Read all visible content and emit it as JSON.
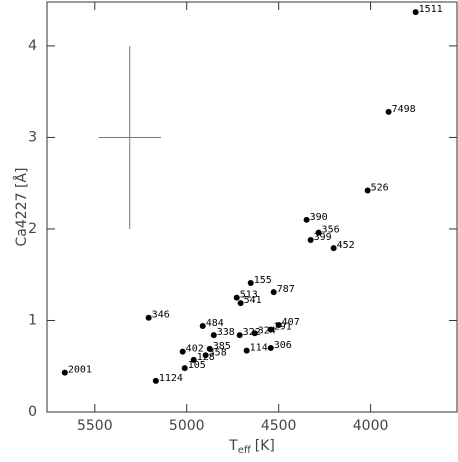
{
  "chart_data": {
    "type": "scatter",
    "xlabel": {
      "symbol": "T",
      "subscript": "eff",
      "unit": "[K]"
    },
    "ylabel": "Ca4227 [Å]",
    "color": "#000000",
    "xlim": [
      5760,
      3530
    ],
    "ylim": [
      0,
      4.48
    ],
    "xticks": [
      5500,
      5000,
      4500,
      4000
    ],
    "yticks": [
      0,
      1,
      2,
      3,
      4
    ],
    "names": [
      "1511",
      "7498",
      "526",
      "390",
      "356",
      "399",
      "452",
      "155",
      "787",
      "513",
      "541",
      "346",
      "484",
      "407",
      "291",
      "338",
      "322",
      "324",
      "306",
      "114",
      "402",
      "385",
      "358",
      "128",
      "105",
      "2001",
      "1124"
    ],
    "x": [
      3755,
      3902,
      4016,
      4348,
      4283,
      4326,
      4201,
      4652,
      4527,
      4728,
      4707,
      5207,
      4913,
      4500,
      4543,
      4853,
      4712,
      4630,
      4543,
      4674,
      5022,
      4875,
      4897,
      4962,
      5011,
      5663,
      5168
    ],
    "y": [
      4.37,
      3.28,
      2.42,
      2.1,
      1.96,
      1.88,
      1.79,
      1.41,
      1.31,
      1.25,
      1.19,
      1.03,
      0.94,
      0.95,
      0.9,
      0.84,
      0.84,
      0.86,
      0.7,
      0.67,
      0.66,
      0.69,
      0.62,
      0.57,
      0.48,
      0.43,
      0.34
    ],
    "error_bar": {
      "x": 5310,
      "y": 3,
      "xerr": 170,
      "yerr": 1
    }
  }
}
